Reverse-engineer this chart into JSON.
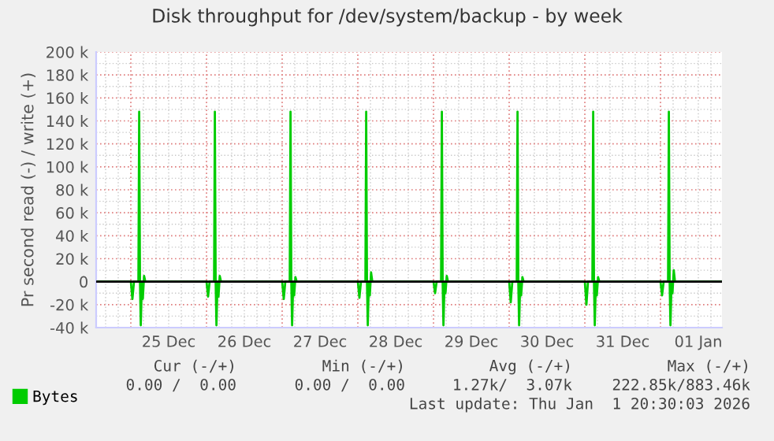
{
  "chart_data": {
    "type": "line",
    "title": "Disk throughput for /dev/system/backup - by week",
    "ylabel": "Pr second read (-) / write (+)",
    "x": [
      "2025-12-24T13:00",
      "2025-12-25T00:00",
      "2025-12-25T00:30",
      "2025-12-25T01:00",
      "2025-12-25T02:24",
      "2025-12-25T02:39",
      "2025-12-25T02:54",
      "2025-12-25T03:09",
      "2025-12-25T03:30",
      "2025-12-25T03:48",
      "2025-12-25T04:12",
      "2025-12-25T04:36",
      "2025-12-26T00:00",
      "2025-12-26T00:30",
      "2025-12-26T01:00",
      "2025-12-26T02:24",
      "2025-12-26T02:39",
      "2025-12-26T02:54",
      "2025-12-26T03:09",
      "2025-12-26T03:30",
      "2025-12-26T03:48",
      "2025-12-26T04:12",
      "2025-12-26T04:36",
      "2025-12-27T00:00",
      "2025-12-27T00:30",
      "2025-12-27T01:00",
      "2025-12-27T02:24",
      "2025-12-27T02:39",
      "2025-12-27T02:54",
      "2025-12-27T03:09",
      "2025-12-27T03:30",
      "2025-12-27T03:48",
      "2025-12-27T04:12",
      "2025-12-27T04:36",
      "2025-12-28T00:00",
      "2025-12-28T00:30",
      "2025-12-28T01:00",
      "2025-12-28T02:24",
      "2025-12-28T02:39",
      "2025-12-28T02:54",
      "2025-12-28T03:09",
      "2025-12-28T03:30",
      "2025-12-28T03:48",
      "2025-12-28T04:12",
      "2025-12-28T04:36",
      "2025-12-29T00:00",
      "2025-12-29T00:30",
      "2025-12-29T01:00",
      "2025-12-29T02:24",
      "2025-12-29T02:39",
      "2025-12-29T02:54",
      "2025-12-29T03:09",
      "2025-12-29T03:30",
      "2025-12-29T03:48",
      "2025-12-29T04:12",
      "2025-12-29T04:36",
      "2025-12-30T00:00",
      "2025-12-30T00:30",
      "2025-12-30T01:00",
      "2025-12-30T02:24",
      "2025-12-30T02:39",
      "2025-12-30T02:54",
      "2025-12-30T03:09",
      "2025-12-30T03:30",
      "2025-12-30T03:48",
      "2025-12-30T04:12",
      "2025-12-30T04:36",
      "2025-12-31T00:00",
      "2025-12-31T00:30",
      "2025-12-31T01:00",
      "2025-12-31T02:24",
      "2025-12-31T02:39",
      "2025-12-31T02:54",
      "2025-12-31T03:09",
      "2025-12-31T03:30",
      "2025-12-31T03:48",
      "2025-12-31T04:12",
      "2025-12-31T04:36",
      "2026-01-01T00:00",
      "2026-01-01T00:30",
      "2026-01-01T01:00",
      "2026-01-01T02:24",
      "2026-01-01T02:39",
      "2026-01-01T02:54",
      "2026-01-01T03:09",
      "2026-01-01T03:30",
      "2026-01-01T03:48",
      "2026-01-01T04:12",
      "2026-01-01T04:36",
      "2026-01-01T19:30"
    ],
    "series": [
      {
        "name": "Bytes",
        "color": "#00cc00",
        "values": [
          0,
          0,
          -15000,
          0,
          0,
          148000,
          0,
          -38000,
          0,
          -15000,
          5000,
          0,
          0,
          -13000,
          0,
          0,
          148000,
          0,
          -38000,
          0,
          -13000,
          5000,
          0,
          0,
          -15000,
          0,
          0,
          148000,
          0,
          -38000,
          0,
          -12000,
          4000,
          0,
          0,
          -14000,
          0,
          0,
          148000,
          0,
          -38000,
          0,
          -12000,
          8000,
          0,
          0,
          -10000,
          0,
          0,
          148000,
          0,
          -38000,
          0,
          -10000,
          5000,
          0,
          0,
          -18000,
          0,
          0,
          148000,
          0,
          -38000,
          0,
          -12000,
          4000,
          0,
          0,
          -20000,
          0,
          0,
          148000,
          0,
          -38000,
          0,
          -12000,
          4000,
          0,
          0,
          -12000,
          0,
          0,
          148000,
          0,
          -38000,
          0,
          -10000,
          10000,
          0,
          0
        ]
      }
    ],
    "xlim": [
      "2025-12-24T13:00",
      "2026-01-01T19:30"
    ],
    "xticks": [
      {
        "value": "2025-12-25T12:00",
        "label": "25 Dec"
      },
      {
        "value": "2025-12-26T12:00",
        "label": "26 Dec"
      },
      {
        "value": "2025-12-27T12:00",
        "label": "27 Dec"
      },
      {
        "value": "2025-12-28T12:00",
        "label": "28 Dec"
      },
      {
        "value": "2025-12-29T12:00",
        "label": "29 Dec"
      },
      {
        "value": "2025-12-30T12:00",
        "label": "30 Dec"
      },
      {
        "value": "2025-12-31T12:00",
        "label": "31 Dec"
      },
      {
        "value": "2026-01-01T12:00",
        "label": "01 Jan"
      }
    ],
    "ylim": [
      -40000,
      200000
    ],
    "yticks": [
      {
        "value": -40000,
        "label": "-40 k"
      },
      {
        "value": -20000,
        "label": "-20 k"
      },
      0,
      {
        "value": 20000,
        "label": "20 k"
      },
      {
        "value": 40000,
        "label": "40 k"
      },
      {
        "value": 60000,
        "label": "60 k"
      },
      {
        "value": 80000,
        "label": "80 k"
      },
      {
        "value": 100000,
        "label": "100 k"
      },
      {
        "value": 120000,
        "label": "120 k"
      },
      {
        "value": 140000,
        "label": "140 k"
      },
      {
        "value": 160000,
        "label": "160 k"
      },
      {
        "value": 180000,
        "label": "180 k"
      },
      {
        "value": 200000,
        "label": "200 k"
      }
    ],
    "ref_lines": [
      {
        "axis": "y",
        "value": 0,
        "color": "#000000"
      }
    ],
    "grid": true,
    "legend": "bottom left",
    "annotations": [
      "Cur (-/+)",
      "Min (-/+)",
      "Avg (-/+)",
      "Max (-/+)",
      "0.00 /  0.00",
      "0.00 /  0.00",
      "1.27k/  3.07k",
      "222.85k/883.46k",
      "Last update: Thu Jan  1 20:30:03 2026"
    ]
  }
}
